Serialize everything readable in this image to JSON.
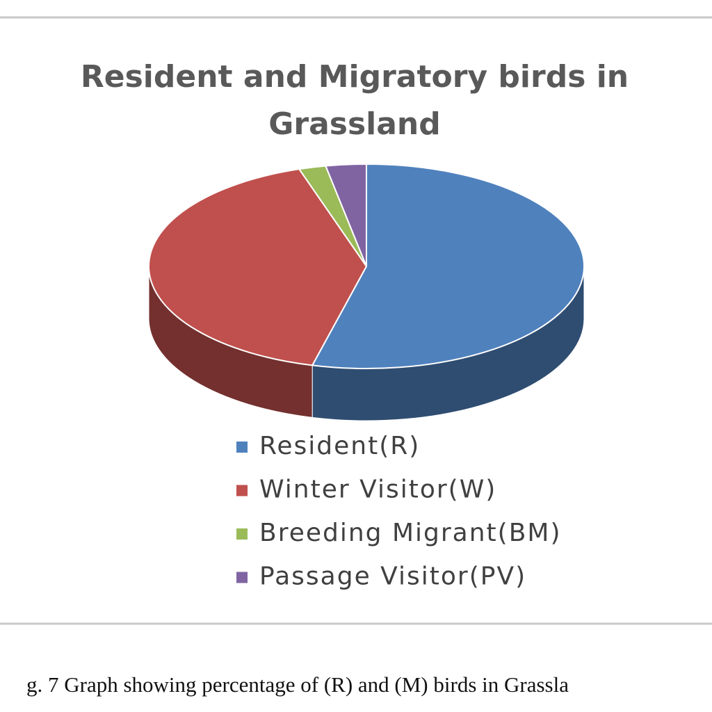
{
  "chart_data": {
    "type": "pie",
    "title": "Resident and Migratory birds in Grassland",
    "categories": [
      "Resident(R)",
      "Winter Visitor(W)",
      "Breeding Migrant(BM)",
      "Passage Visitor(PV)"
    ],
    "values": [
      54,
      41,
      2,
      3
    ],
    "colors": [
      "#4f81bd",
      "#c0504d",
      "#9bbb59",
      "#8064a2"
    ],
    "caption": "g. 7 Graph showing percentage of (R) and (M) birds in Grassla"
  }
}
